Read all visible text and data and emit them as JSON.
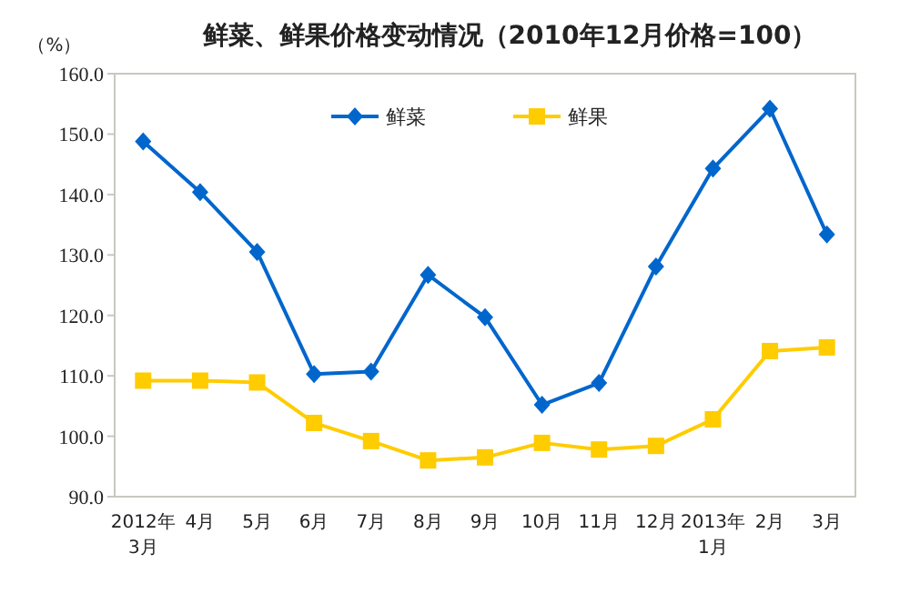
{
  "chart_data": {
    "type": "line",
    "title": "鲜菜、鲜果价格变动情况（2010年12月价格=100）",
    "ylabel": "（%）",
    "categories": [
      "2012年\n3月",
      "4月",
      "5月",
      "6月",
      "7月",
      "8月",
      "9月",
      "10月",
      "11月",
      "12月",
      "2013年\n1月",
      "2月",
      "3月"
    ],
    "series": [
      {
        "name": "鲜菜",
        "color": "#0066cc",
        "marker": "diamond",
        "values": [
          148.8,
          140.4,
          130.5,
          110.3,
          110.7,
          126.7,
          119.7,
          105.2,
          108.8,
          128.1,
          144.3,
          154.2,
          133.4
        ]
      },
      {
        "name": "鲜果",
        "color": "#ffcc00",
        "marker": "square",
        "values": [
          109.2,
          109.2,
          108.9,
          102.2,
          99.2,
          96.0,
          96.5,
          98.9,
          97.8,
          98.4,
          102.8,
          114.1,
          114.7
        ]
      }
    ],
    "ylim": [
      90,
      160
    ],
    "yticks": [
      {
        "value": 90,
        "label": "90.0"
      },
      {
        "value": 100,
        "label": "100.0"
      },
      {
        "value": 110,
        "label": "110.0"
      },
      {
        "value": 120,
        "label": "120.0"
      },
      {
        "value": 130,
        "label": "130.0"
      },
      {
        "value": 140,
        "label": "140.0"
      },
      {
        "value": 150,
        "label": "150.0"
      },
      {
        "value": 160,
        "label": "160.0"
      }
    ],
    "grid": false,
    "legend": "top",
    "line_style": "solid"
  }
}
